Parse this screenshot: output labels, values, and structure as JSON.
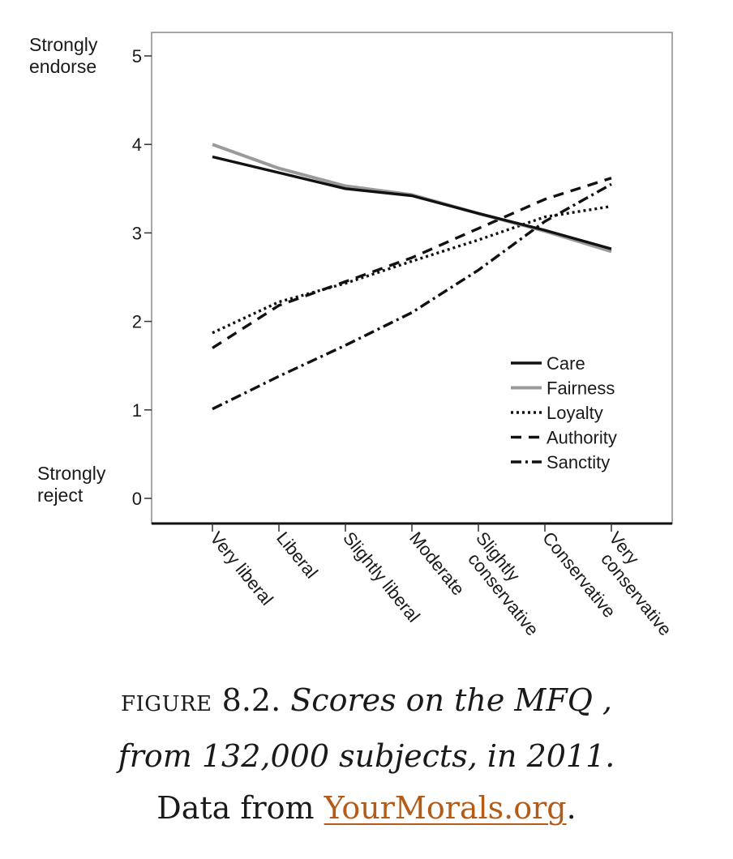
{
  "chart_data": {
    "type": "line",
    "ylim": [
      0,
      5
    ],
    "yticks": [
      0,
      1,
      2,
      3,
      4,
      5
    ],
    "y_end_labels": {
      "top": [
        "Strongly",
        "endorse"
      ],
      "bottom": [
        "Strongly",
        "reject"
      ]
    },
    "categories": [
      [
        "Very liberal"
      ],
      [
        "Liberal"
      ],
      [
        "Slightly liberal"
      ],
      [
        "Moderate"
      ],
      [
        "Slightly",
        "conservative"
      ],
      [
        "Conservative"
      ],
      [
        "Very",
        "conservative"
      ]
    ],
    "series": [
      {
        "name": "Care",
        "style": "solid",
        "color": "#111111",
        "values": [
          3.86,
          3.68,
          3.5,
          3.42,
          3.22,
          3.03,
          2.82
        ]
      },
      {
        "name": "Fairness",
        "style": "solid",
        "color": "#9a9a9a",
        "values": [
          4.0,
          3.73,
          3.53,
          3.43,
          3.22,
          3.02,
          2.79
        ]
      },
      {
        "name": "Loyalty",
        "style": "dotted",
        "color": "#111111",
        "values": [
          1.87,
          2.22,
          2.43,
          2.68,
          2.92,
          3.18,
          3.3
        ]
      },
      {
        "name": "Authority",
        "style": "dashed",
        "color": "#111111",
        "values": [
          1.7,
          2.18,
          2.45,
          2.72,
          3.05,
          3.38,
          3.62
        ]
      },
      {
        "name": "Sanctity",
        "style": "dashdot",
        "color": "#111111",
        "values": [
          1.01,
          1.38,
          1.73,
          2.1,
          2.58,
          3.13,
          3.55
        ]
      }
    ],
    "legend": "inside-lower-right",
    "grid": false
  },
  "caption": {
    "figure_label": "FIGURE",
    "figure_number": "8.2.",
    "line1_italic": "Scores on the MFQ ,",
    "line2_italic": "from 132,000 subjects, in 2011.",
    "line3_prefix": "Data from ",
    "link_text": "YourMorals.org",
    "line3_suffix": ".",
    "link_color": "#b35b17"
  }
}
